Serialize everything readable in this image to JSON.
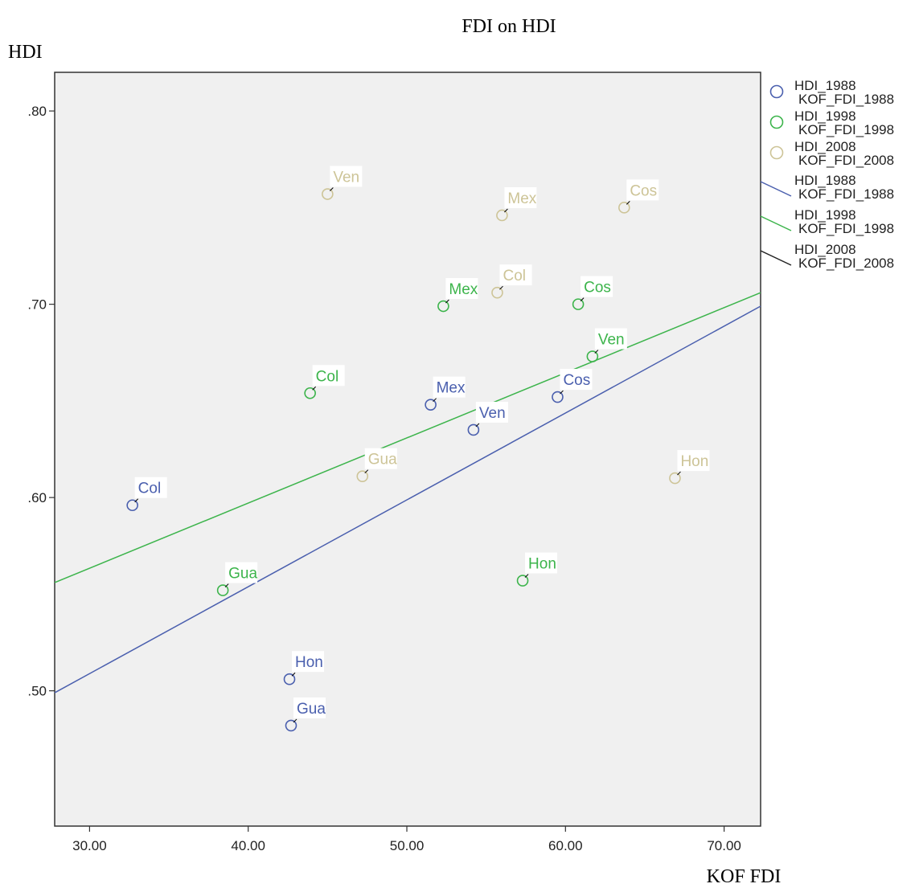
{
  "chart_data": {
    "type": "scatter",
    "title": "FDI on HDI",
    "xlabel": "KOF FDI",
    "ylabel": "HDI",
    "xlim": [
      27.8,
      72.3
    ],
    "ylim": [
      0.43,
      0.82
    ],
    "x_ticks": [
      30,
      40,
      50,
      60,
      70
    ],
    "x_tick_labels": [
      "30.00",
      "40.00",
      "50.00",
      "60.00",
      "70.00"
    ],
    "y_ticks": [
      0.5,
      0.6,
      0.7,
      0.8
    ],
    "y_tick_labels": [
      ".50",
      ".60",
      ".70",
      ".80"
    ],
    "grid": false,
    "legend_position": "right",
    "series": [
      {
        "name": "HDI_1988 KOF_FDI_1988",
        "legend_line1": "HDI_1988",
        "legend_line2": "KOF_FDI_1988",
        "color": "#4a5fae",
        "points": [
          {
            "label": "Col",
            "x": 32.7,
            "y": 0.596
          },
          {
            "label": "Mex",
            "x": 51.5,
            "y": 0.648
          },
          {
            "label": "Ven",
            "x": 54.2,
            "y": 0.635
          },
          {
            "label": "Cos",
            "x": 59.5,
            "y": 0.652
          },
          {
            "label": "Hon",
            "x": 42.6,
            "y": 0.506
          },
          {
            "label": "Gua",
            "x": 42.7,
            "y": 0.482
          }
        ]
      },
      {
        "name": "HDI_1998 KOF_FDI_1998",
        "legend_line1": "HDI_1998",
        "legend_line2": "KOF_FDI_1998",
        "color": "#3cb44b",
        "points": [
          {
            "label": "Col",
            "x": 43.9,
            "y": 0.654
          },
          {
            "label": "Mex",
            "x": 52.3,
            "y": 0.699
          },
          {
            "label": "Cos",
            "x": 60.8,
            "y": 0.7
          },
          {
            "label": "Ven",
            "x": 61.7,
            "y": 0.673
          },
          {
            "label": "Gua",
            "x": 38.4,
            "y": 0.552
          },
          {
            "label": "Hon",
            "x": 57.3,
            "y": 0.557
          }
        ]
      },
      {
        "name": "HDI_2008 KOF_FDI_2008",
        "legend_line1": "HDI_2008",
        "legend_line2": "KOF_FDI_2008",
        "color": "#cdc497",
        "points": [
          {
            "label": "Ven",
            "x": 45.0,
            "y": 0.757
          },
          {
            "label": "Mex",
            "x": 56.0,
            "y": 0.746
          },
          {
            "label": "Cos",
            "x": 63.7,
            "y": 0.75
          },
          {
            "label": "Col",
            "x": 55.7,
            "y": 0.706
          },
          {
            "label": "Gua",
            "x": 47.2,
            "y": 0.611
          },
          {
            "label": "Hon",
            "x": 66.9,
            "y": 0.61
          }
        ]
      }
    ],
    "fit_lines": [
      {
        "legend_line1": "HDI_1988",
        "legend_line2": "KOF_FDI_1988",
        "color": "#4a5fae",
        "x": [
          27.8,
          72.3
        ],
        "y": [
          0.499,
          0.699
        ]
      },
      {
        "legend_line1": "HDI_1998",
        "legend_line2": "KOF_FDI_1998",
        "color": "#3cb44b",
        "x": [
          27.8,
          72.3
        ],
        "y": [
          0.556,
          0.706
        ]
      },
      {
        "legend_line1": "HDI_2008",
        "legend_line2": "KOF_FDI_2008",
        "color": "#222222"
      }
    ]
  }
}
